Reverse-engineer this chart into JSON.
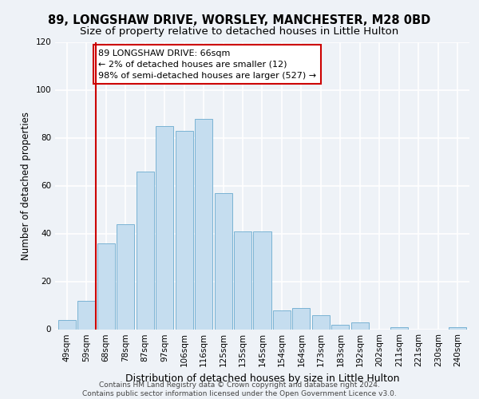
{
  "title": "89, LONGSHAW DRIVE, WORSLEY, MANCHESTER, M28 0BD",
  "subtitle": "Size of property relative to detached houses in Little Hulton",
  "xlabel": "Distribution of detached houses by size in Little Hulton",
  "ylabel": "Number of detached properties",
  "bar_labels": [
    "49sqm",
    "59sqm",
    "68sqm",
    "78sqm",
    "87sqm",
    "97sqm",
    "106sqm",
    "116sqm",
    "125sqm",
    "135sqm",
    "145sqm",
    "154sqm",
    "164sqm",
    "173sqm",
    "183sqm",
    "192sqm",
    "202sqm",
    "211sqm",
    "221sqm",
    "230sqm",
    "240sqm"
  ],
  "bar_values": [
    4,
    12,
    36,
    44,
    66,
    85,
    83,
    88,
    57,
    41,
    41,
    8,
    9,
    6,
    2,
    3,
    0,
    1,
    0,
    0,
    1
  ],
  "bar_color": "#c5ddef",
  "bar_edge_color": "#7ab3d4",
  "vline_x": 1.5,
  "annotation_line1": "89 LONGSHAW DRIVE: 66sqm",
  "annotation_line2": "← 2% of detached houses are smaller (12)",
  "annotation_line3": "98% of semi-detached houses are larger (527) →",
  "annotation_box_color": "#ffffff",
  "annotation_box_edge_color": "#cc0000",
  "vline_color": "#cc0000",
  "ylim": [
    0,
    120
  ],
  "yticks": [
    0,
    20,
    40,
    60,
    80,
    100,
    120
  ],
  "footer_line1": "Contains HM Land Registry data © Crown copyright and database right 2024.",
  "footer_line2": "Contains public sector information licensed under the Open Government Licence v3.0.",
  "background_color": "#eef2f7",
  "grid_color": "#ffffff",
  "title_fontsize": 10.5,
  "subtitle_fontsize": 9.5,
  "ylabel_fontsize": 8.5,
  "xlabel_fontsize": 9,
  "tick_fontsize": 7.5,
  "annotation_fontsize": 8,
  "footer_fontsize": 6.5
}
